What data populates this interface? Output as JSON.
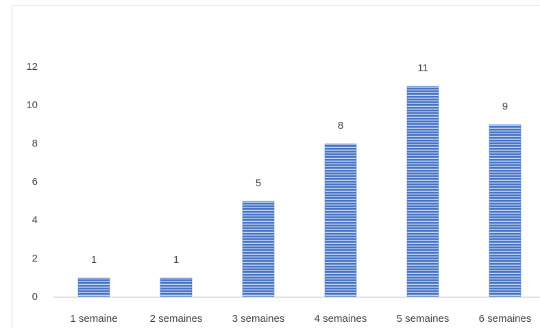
{
  "chart_data": {
    "type": "bar",
    "categories": [
      "1 semaine",
      "2 semaines",
      "3 semaines",
      "4 semaines",
      "5 semaines",
      "6 semaines"
    ],
    "values": [
      1,
      1,
      5,
      8,
      11,
      9
    ],
    "color": "#4472c4",
    "ylim": [
      0,
      12
    ],
    "yticks": [
      0,
      2,
      4,
      6,
      8,
      10,
      12
    ],
    "grid": false
  }
}
